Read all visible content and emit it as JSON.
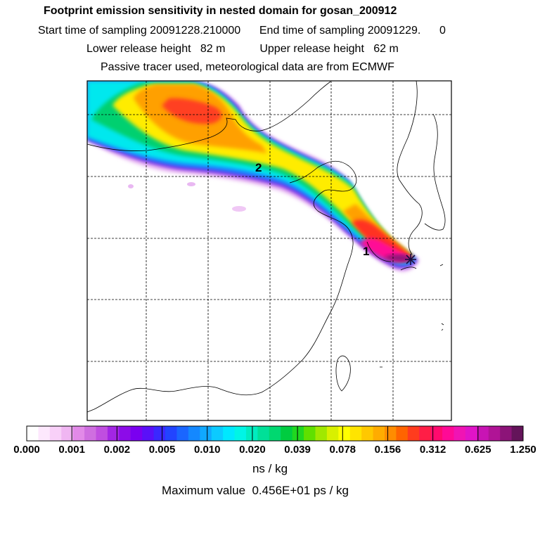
{
  "header": {
    "title": "Footprint emission sensitivity in nested domain for gosan_200912",
    "sampling_line": "Start time of sampling 20091228.210000      End time of sampling 20091229.      0",
    "release_line": "Lower release height   82 m           Upper release height   62 m",
    "tracer_line": "Passive tracer used, meteorological data are from ECMWF"
  },
  "map": {
    "labels": [
      "1",
      "2"
    ],
    "receptor_marker": "star-marker-icon"
  },
  "colorbar": {
    "ticks": [
      "0.000",
      "0.001",
      "0.002",
      "0.005",
      "0.010",
      "0.020",
      "0.039",
      "0.078",
      "0.156",
      "0.312",
      "0.625",
      "1.250"
    ],
    "colors": [
      "#ffffff",
      "#fde8fd",
      "#f8d0f8",
      "#f0b6f2",
      "#e28ae8",
      "#cf6ee0",
      "#c04ee0",
      "#a326e4",
      "#8c0ce8",
      "#7a00f0",
      "#5a10f8",
      "#3a28ff",
      "#2244ff",
      "#1a66ff",
      "#1488ff",
      "#10a8ff",
      "#0ccaff",
      "#00e8ff",
      "#00f5e6",
      "#00ecc0",
      "#00e098",
      "#00d870",
      "#00cc40",
      "#20d820",
      "#60e000",
      "#a0e800",
      "#d8f000",
      "#ffff00",
      "#ffe400",
      "#ffc800",
      "#ffac00",
      "#ff8c00",
      "#ff6400",
      "#ff3c1e",
      "#ff1e46",
      "#ff0a6e",
      "#ff0a96",
      "#f014b4",
      "#e014c8",
      "#c814b4",
      "#b01496",
      "#8c1478",
      "#64145a"
    ],
    "units": "ns / kg",
    "max_value": "Maximum value  0.456E+01 ps / kg"
  }
}
